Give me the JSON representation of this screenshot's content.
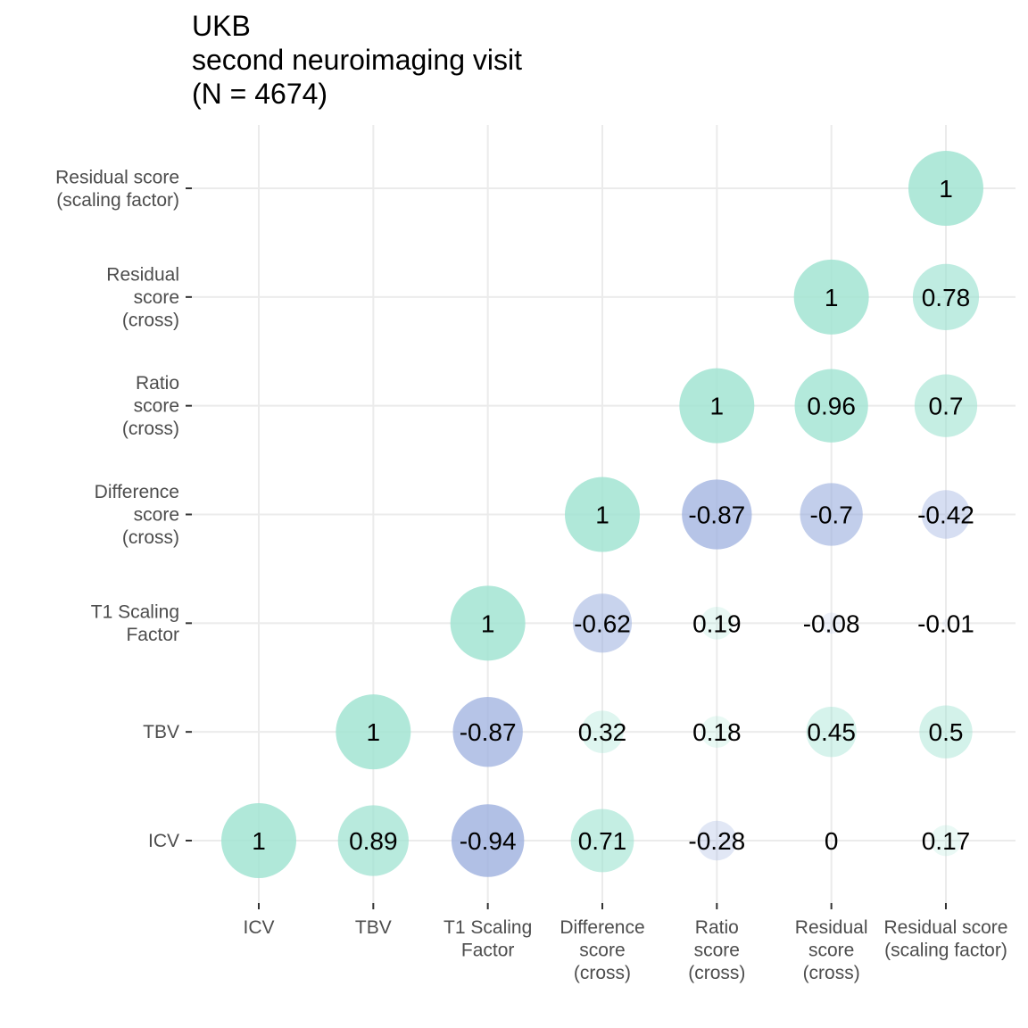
{
  "title_lines": [
    "UKB",
    "second neuroimaging visit",
    "(N = 4674)"
  ],
  "chart_data": {
    "type": "heatmap",
    "subtype": "correlation-bubble-matrix (upper triangle)",
    "variables": [
      [
        "ICV"
      ],
      [
        "TBV"
      ],
      [
        "T1 Scaling",
        "Factor"
      ],
      [
        "Difference",
        "score",
        "(cross)"
      ],
      [
        "Ratio",
        "score",
        "(cross)"
      ],
      [
        "Residual",
        "score",
        "(cross)"
      ],
      [
        "Residual score",
        "(scaling factor)"
      ]
    ],
    "y_variables": [
      [
        "ICV"
      ],
      [
        "TBV"
      ],
      [
        "T1 Scaling",
        "Factor"
      ],
      [
        "Difference",
        "score",
        "(cross)"
      ],
      [
        "Ratio",
        "score",
        "(cross)"
      ],
      [
        "Residual",
        "score",
        "(cross)"
      ],
      [
        "Residual score",
        "(scaling factor)"
      ]
    ],
    "cells": [
      {
        "row": 0,
        "col": 0,
        "value": 1,
        "label": "1"
      },
      {
        "row": 0,
        "col": 1,
        "value": 0.89,
        "label": "0.89"
      },
      {
        "row": 0,
        "col": 2,
        "value": -0.94,
        "label": "-0.94"
      },
      {
        "row": 0,
        "col": 3,
        "value": 0.71,
        "label": "0.71"
      },
      {
        "row": 0,
        "col": 4,
        "value": -0.28,
        "label": "-0.28"
      },
      {
        "row": 0,
        "col": 5,
        "value": 0,
        "label": "0"
      },
      {
        "row": 0,
        "col": 6,
        "value": 0.17,
        "label": "0.17"
      },
      {
        "row": 1,
        "col": 1,
        "value": 1,
        "label": "1"
      },
      {
        "row": 1,
        "col": 2,
        "value": -0.87,
        "label": "-0.87"
      },
      {
        "row": 1,
        "col": 3,
        "value": 0.32,
        "label": "0.32"
      },
      {
        "row": 1,
        "col": 4,
        "value": 0.18,
        "label": "0.18"
      },
      {
        "row": 1,
        "col": 5,
        "value": 0.45,
        "label": "0.45"
      },
      {
        "row": 1,
        "col": 6,
        "value": 0.5,
        "label": "0.5"
      },
      {
        "row": 2,
        "col": 2,
        "value": 1,
        "label": "1"
      },
      {
        "row": 2,
        "col": 3,
        "value": -0.62,
        "label": "-0.62"
      },
      {
        "row": 2,
        "col": 4,
        "value": 0.19,
        "label": "0.19"
      },
      {
        "row": 2,
        "col": 5,
        "value": -0.08,
        "label": "-0.08"
      },
      {
        "row": 2,
        "col": 6,
        "value": -0.01,
        "label": "-0.01"
      },
      {
        "row": 3,
        "col": 3,
        "value": 1,
        "label": "1"
      },
      {
        "row": 3,
        "col": 4,
        "value": -0.87,
        "label": "-0.87"
      },
      {
        "row": 3,
        "col": 5,
        "value": -0.7,
        "label": "-0.7"
      },
      {
        "row": 3,
        "col": 6,
        "value": -0.42,
        "label": "-0.42"
      },
      {
        "row": 4,
        "col": 4,
        "value": 1,
        "label": "1"
      },
      {
        "row": 4,
        "col": 5,
        "value": 0.96,
        "label": "0.96"
      },
      {
        "row": 4,
        "col": 6,
        "value": 0.7,
        "label": "0.7"
      },
      {
        "row": 5,
        "col": 5,
        "value": 1,
        "label": "1"
      },
      {
        "row": 5,
        "col": 6,
        "value": 0.78,
        "label": "0.78"
      },
      {
        "row": 6,
        "col": 6,
        "value": 1,
        "label": "1"
      }
    ],
    "colors": {
      "positive": "#9fe3d1",
      "negative": "#9aaede",
      "grid": "#ebebeb"
    },
    "legend": "none",
    "grid": true
  }
}
